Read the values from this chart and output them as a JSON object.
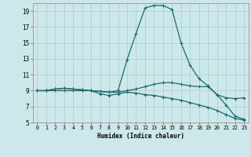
{
  "bg_color": "#cce8ea",
  "grid_color": "#aed0d4",
  "line_color": "#1a6b6b",
  "xlabel": "Humidex (Indice chaleur)",
  "xlim": [
    -0.5,
    23.5
  ],
  "ylim": [
    5,
    20
  ],
  "xticks": [
    0,
    1,
    2,
    3,
    4,
    5,
    6,
    7,
    8,
    9,
    10,
    11,
    12,
    13,
    14,
    15,
    16,
    17,
    18,
    19,
    20,
    21,
    22,
    23
  ],
  "yticks": [
    5,
    7,
    9,
    11,
    13,
    15,
    17,
    19
  ],
  "curve1_x": [
    0,
    1,
    2,
    3,
    4,
    5,
    6,
    7,
    8,
    9,
    10,
    11,
    12,
    13,
    14,
    15,
    16,
    17,
    18,
    19,
    20,
    21,
    22,
    23
  ],
  "curve1_y": [
    9.0,
    9.0,
    9.2,
    9.3,
    9.2,
    9.1,
    9.0,
    8.9,
    8.8,
    9.0,
    12.9,
    16.2,
    19.4,
    19.7,
    19.7,
    19.2,
    15.0,
    12.2,
    10.5,
    9.6,
    8.5,
    7.2,
    5.8,
    5.4
  ],
  "curve2_x": [
    0,
    1,
    2,
    3,
    4,
    5,
    6,
    7,
    8,
    9,
    10,
    11,
    12,
    13,
    14,
    15,
    16,
    17,
    18,
    19,
    20,
    21,
    22,
    23
  ],
  "curve2_y": [
    9.0,
    9.0,
    9.2,
    9.3,
    9.2,
    9.1,
    9.0,
    8.9,
    8.8,
    8.8,
    9.0,
    9.2,
    9.5,
    9.8,
    10.0,
    10.0,
    9.8,
    9.6,
    9.5,
    9.5,
    8.5,
    8.1,
    8.0,
    8.1
  ],
  "curve3_x": [
    0,
    1,
    2,
    3,
    4,
    5,
    6,
    7,
    8,
    9,
    10,
    11,
    12,
    13,
    14,
    15,
    16,
    17,
    18,
    19,
    20,
    21,
    22,
    23
  ],
  "curve3_y": [
    9.0,
    9.0,
    9.0,
    9.0,
    9.0,
    9.0,
    9.0,
    8.6,
    8.4,
    8.6,
    8.8,
    8.7,
    8.5,
    8.4,
    8.2,
    8.0,
    7.8,
    7.5,
    7.2,
    6.9,
    6.5,
    6.0,
    5.5,
    5.3
  ]
}
